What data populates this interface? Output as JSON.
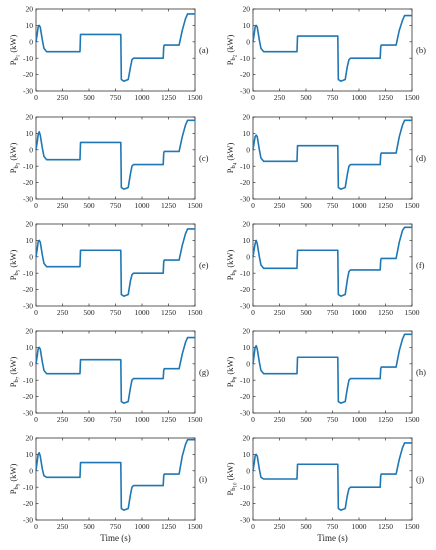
{
  "chart_data": [
    {
      "type": "line",
      "panel_label": "(a)",
      "ylabel": "P_{b_1} (kW)",
      "ylabel_main": "P",
      "ylabel_sub": "b",
      "ylabel_subsub": "1",
      "ylabel_unit": "(kW)",
      "xlabel": "",
      "xlim": [
        0,
        1500
      ],
      "ylim": [
        -30,
        20
      ],
      "xticks": [
        "0",
        "250",
        "500",
        "750",
        "1000",
        "1250",
        "1500"
      ],
      "yticks": [
        "-30",
        "-20",
        "-10",
        "0",
        "10",
        "20"
      ],
      "series": [
        {
          "color": "#1f77b4",
          "x": [
            0,
            12,
            20,
            30,
            40,
            50,
            60,
            75,
            100,
            415,
            420,
            430,
            800,
            805,
            830,
            870,
            890,
            905,
            920,
            940,
            1200,
            1205,
            1210,
            1230,
            1350,
            1380,
            1410,
            1430,
            1460,
            1500
          ],
          "y": [
            0,
            5,
            9,
            10,
            9,
            5,
            1,
            -4,
            -6,
            -6,
            4.5,
            4.5,
            4.5,
            -23,
            -24,
            -23,
            -16,
            -11,
            -10,
            -10,
            -10,
            -3,
            -2,
            -2,
            -2,
            7,
            14,
            17,
            17,
            17
          ]
        }
      ]
    },
    {
      "type": "line",
      "panel_label": "(b)",
      "ylabel": "P_{b_2} (kW)",
      "ylabel_main": "P",
      "ylabel_sub": "b",
      "ylabel_subsub": "2",
      "ylabel_unit": "(kW)",
      "xlabel": "",
      "xlim": [
        0,
        1500
      ],
      "ylim": [
        -30,
        20
      ],
      "xticks": [
        "0",
        "250",
        "500",
        "750",
        "1000",
        "1250",
        "1500"
      ],
      "yticks": [
        "-30",
        "-20",
        "-10",
        "0",
        "10",
        "20"
      ],
      "series": [
        {
          "color": "#1f77b4",
          "x": [
            0,
            12,
            20,
            30,
            40,
            50,
            60,
            75,
            100,
            415,
            420,
            430,
            800,
            805,
            830,
            870,
            890,
            905,
            920,
            940,
            1200,
            1205,
            1210,
            1230,
            1350,
            1380,
            1410,
            1430,
            1460,
            1500
          ],
          "y": [
            0,
            5,
            9,
            10,
            9,
            5,
            1,
            -4,
            -6,
            -6,
            3.5,
            3.5,
            3.5,
            -23,
            -24,
            -23,
            -15,
            -11,
            -10,
            -10,
            -10,
            -3,
            -2,
            -2,
            -2,
            7,
            13,
            16,
            16,
            16
          ]
        }
      ]
    },
    {
      "type": "line",
      "panel_label": "(c)",
      "ylabel": "P_{b_3} (kW)",
      "ylabel_main": "P",
      "ylabel_sub": "b",
      "ylabel_subsub": "3",
      "ylabel_unit": "(kW)",
      "xlabel": "",
      "xlim": [
        0,
        1500
      ],
      "ylim": [
        -30,
        20
      ],
      "xticks": [
        "0",
        "250",
        "500",
        "750",
        "1000",
        "1250",
        "1500"
      ],
      "yticks": [
        "-30",
        "-20",
        "-10",
        "0",
        "10",
        "20"
      ],
      "series": [
        {
          "color": "#1f77b4",
          "x": [
            0,
            12,
            20,
            30,
            40,
            50,
            60,
            75,
            100,
            415,
            420,
            430,
            800,
            805,
            830,
            870,
            890,
            905,
            920,
            940,
            1200,
            1205,
            1210,
            1230,
            1350,
            1380,
            1410,
            1430,
            1460,
            1500
          ],
          "y": [
            0,
            5,
            9,
            11,
            9,
            5,
            1,
            -4,
            -6,
            -6,
            4.5,
            4.5,
            4.5,
            -23,
            -24,
            -23,
            -15,
            -10,
            -9,
            -9,
            -9,
            -2,
            -1,
            -1,
            -1,
            8,
            15,
            18,
            18,
            18
          ]
        }
      ]
    },
    {
      "type": "line",
      "panel_label": "(d)",
      "ylabel": "P_{b_4} (kW)",
      "ylabel_main": "P",
      "ylabel_sub": "b",
      "ylabel_subsub": "4",
      "ylabel_unit": "(kW)",
      "xlabel": "",
      "xlim": [
        0,
        1500
      ],
      "ylim": [
        -30,
        20
      ],
      "xticks": [
        "0",
        "250",
        "500",
        "750",
        "1000",
        "1250",
        "1500"
      ],
      "yticks": [
        "-30",
        "-20",
        "-10",
        "0",
        "10",
        "20"
      ],
      "series": [
        {
          "color": "#1f77b4",
          "x": [
            0,
            12,
            20,
            30,
            40,
            50,
            60,
            75,
            100,
            415,
            420,
            430,
            800,
            805,
            830,
            870,
            890,
            905,
            920,
            940,
            1200,
            1205,
            1210,
            1230,
            1350,
            1380,
            1410,
            1430,
            1460,
            1500
          ],
          "y": [
            0,
            5,
            8,
            9,
            8,
            4,
            0,
            -5,
            -7,
            -7,
            2.5,
            2.5,
            2.5,
            -23,
            -24,
            -23,
            -15,
            -10,
            -9,
            -9,
            -9,
            -3,
            -2,
            -2,
            -2,
            8,
            15,
            18,
            18,
            18
          ]
        }
      ]
    },
    {
      "type": "line",
      "panel_label": "(e)",
      "ylabel": "P_{b_5} (kW)",
      "ylabel_main": "P",
      "ylabel_sub": "b",
      "ylabel_subsub": "5",
      "ylabel_unit": "(kW)",
      "xlabel": "",
      "xlim": [
        0,
        1500
      ],
      "ylim": [
        -30,
        20
      ],
      "xticks": [
        "0",
        "250",
        "500",
        "750",
        "1000",
        "1250",
        "1500"
      ],
      "yticks": [
        "-30",
        "-20",
        "-10",
        "0",
        "10",
        "20"
      ],
      "series": [
        {
          "color": "#1f77b4",
          "x": [
            0,
            12,
            20,
            30,
            40,
            50,
            60,
            75,
            100,
            415,
            420,
            430,
            800,
            805,
            830,
            870,
            890,
            905,
            920,
            940,
            1200,
            1205,
            1210,
            1230,
            1350,
            1380,
            1410,
            1430,
            1460,
            1500
          ],
          "y": [
            0,
            5,
            9,
            10,
            9,
            5,
            1,
            -4,
            -6,
            -6,
            4,
            4,
            4,
            -23,
            -24,
            -23,
            -15,
            -11,
            -10,
            -10,
            -10,
            -3,
            -2,
            -2,
            -2,
            7,
            14,
            17,
            17,
            17
          ]
        }
      ]
    },
    {
      "type": "line",
      "panel_label": "(f)",
      "ylabel": "P_{b_6} (kW)",
      "ylabel_main": "P",
      "ylabel_sub": "b",
      "ylabel_subsub": "6",
      "ylabel_unit": "(kW)",
      "xlabel": "",
      "xlim": [
        0,
        1500
      ],
      "ylim": [
        -30,
        20
      ],
      "xticks": [
        "0",
        "250",
        "500",
        "750",
        "1000",
        "1250",
        "1500"
      ],
      "yticks": [
        "-30",
        "-20",
        "-10",
        "0",
        "10",
        "20"
      ],
      "series": [
        {
          "color": "#1f77b4",
          "x": [
            0,
            12,
            20,
            30,
            40,
            50,
            60,
            75,
            100,
            415,
            420,
            430,
            800,
            805,
            830,
            870,
            890,
            905,
            920,
            940,
            1200,
            1205,
            1210,
            1230,
            1350,
            1380,
            1410,
            1430,
            1460,
            1500
          ],
          "y": [
            0,
            5,
            8,
            10,
            8,
            4,
            0,
            -5,
            -7,
            -7,
            4,
            4,
            4,
            -23,
            -24,
            -23,
            -14,
            -9,
            -8,
            -8,
            -8,
            -2,
            -1,
            -1,
            -1,
            9,
            16,
            18,
            18,
            18
          ]
        }
      ]
    },
    {
      "type": "line",
      "panel_label": "(g)",
      "ylabel": "P_{b_7} (kW)",
      "ylabel_main": "P",
      "ylabel_sub": "b",
      "ylabel_subsub": "7",
      "ylabel_unit": "(kW)",
      "xlabel": "",
      "xlim": [
        0,
        1500
      ],
      "ylim": [
        -30,
        20
      ],
      "xticks": [
        "0",
        "250",
        "500",
        "750",
        "1000",
        "1250",
        "1500"
      ],
      "yticks": [
        "-30",
        "-20",
        "-10",
        "0",
        "10",
        "20"
      ],
      "series": [
        {
          "color": "#1f77b4",
          "x": [
            0,
            12,
            20,
            30,
            40,
            50,
            60,
            75,
            100,
            415,
            420,
            430,
            800,
            805,
            830,
            870,
            890,
            905,
            920,
            940,
            1200,
            1205,
            1210,
            1230,
            1350,
            1380,
            1410,
            1430,
            1460,
            1500
          ],
          "y": [
            0,
            5,
            9,
            10,
            9,
            5,
            1,
            -4,
            -6,
            -6,
            2.5,
            2.5,
            2.5,
            -23,
            -24,
            -23,
            -15,
            -10,
            -9,
            -9,
            -9,
            -4,
            -3,
            -3,
            -3,
            6,
            13,
            16,
            16,
            16
          ]
        }
      ]
    },
    {
      "type": "line",
      "panel_label": "(h)",
      "ylabel": "P_{b_8} (kW)",
      "ylabel_main": "P",
      "ylabel_sub": "b",
      "ylabel_subsub": "8",
      "ylabel_unit": "(kW)",
      "xlabel": "",
      "xlim": [
        0,
        1500
      ],
      "ylim": [
        -30,
        20
      ],
      "xticks": [
        "0",
        "250",
        "500",
        "750",
        "1000",
        "1250",
        "1500"
      ],
      "yticks": [
        "-30",
        "-20",
        "-10",
        "0",
        "10",
        "20"
      ],
      "series": [
        {
          "color": "#1f77b4",
          "x": [
            0,
            12,
            20,
            30,
            40,
            50,
            60,
            75,
            100,
            415,
            420,
            430,
            800,
            805,
            830,
            870,
            890,
            905,
            920,
            940,
            1200,
            1205,
            1210,
            1230,
            1350,
            1380,
            1410,
            1430,
            1460,
            1500
          ],
          "y": [
            0,
            6,
            10,
            11,
            9,
            5,
            1,
            -4,
            -6,
            -6,
            4,
            4,
            4,
            -23,
            -24,
            -23,
            -15,
            -10,
            -9,
            -9,
            -9,
            -3,
            -2,
            -2,
            -2,
            8,
            15,
            18,
            18,
            18
          ]
        }
      ]
    },
    {
      "type": "line",
      "panel_label": "(i)",
      "ylabel": "P_{b_9} (kW)",
      "ylabel_main": "P",
      "ylabel_sub": "b",
      "ylabel_subsub": "9",
      "ylabel_unit": "(kW)",
      "xlabel": "Time (s)",
      "xlim": [
        0,
        1500
      ],
      "ylim": [
        -30,
        20
      ],
      "xticks": [
        "0",
        "250",
        "500",
        "750",
        "1000",
        "1250",
        "1500"
      ],
      "yticks": [
        "-30",
        "-20",
        "-10",
        "0",
        "10",
        "20"
      ],
      "series": [
        {
          "color": "#1f77b4",
          "x": [
            0,
            12,
            20,
            30,
            40,
            50,
            60,
            75,
            100,
            415,
            420,
            430,
            800,
            805,
            830,
            870,
            890,
            905,
            920,
            940,
            1200,
            1205,
            1210,
            1230,
            1350,
            1380,
            1410,
            1430,
            1460,
            1500
          ],
          "y": [
            0,
            6,
            10,
            11,
            9,
            5,
            1,
            -3,
            -4,
            -4,
            5,
            5,
            5,
            -23,
            -24,
            -23,
            -15,
            -10,
            -9,
            -9,
            -9,
            -3,
            -2,
            -2,
            -2,
            9,
            16,
            19,
            19,
            19
          ]
        }
      ]
    },
    {
      "type": "line",
      "panel_label": "(j)",
      "ylabel": "P_{b_10} (kW)",
      "ylabel_main": "P",
      "ylabel_sub": "b",
      "ylabel_subsub": "10",
      "ylabel_unit": "(kW)",
      "xlabel": "Time (s)",
      "xlim": [
        0,
        1500
      ],
      "ylim": [
        -30,
        20
      ],
      "xticks": [
        "0",
        "250",
        "500",
        "750",
        "1000",
        "1250",
        "1500"
      ],
      "yticks": [
        "-30",
        "-20",
        "-10",
        "0",
        "10",
        "20"
      ],
      "series": [
        {
          "color": "#1f77b4",
          "x": [
            0,
            12,
            20,
            30,
            40,
            50,
            60,
            75,
            100,
            415,
            420,
            430,
            800,
            805,
            830,
            870,
            890,
            905,
            920,
            940,
            1200,
            1205,
            1210,
            1230,
            1350,
            1380,
            1410,
            1430,
            1460,
            1500
          ],
          "y": [
            0,
            5,
            9,
            10,
            9,
            5,
            1,
            -4,
            -5,
            -5,
            4,
            4,
            4,
            -23,
            -24,
            -23,
            -15,
            -11,
            -10,
            -10,
            -10,
            -3,
            -2,
            -2,
            -2,
            7,
            14,
            17,
            17,
            17
          ]
        }
      ]
    }
  ]
}
